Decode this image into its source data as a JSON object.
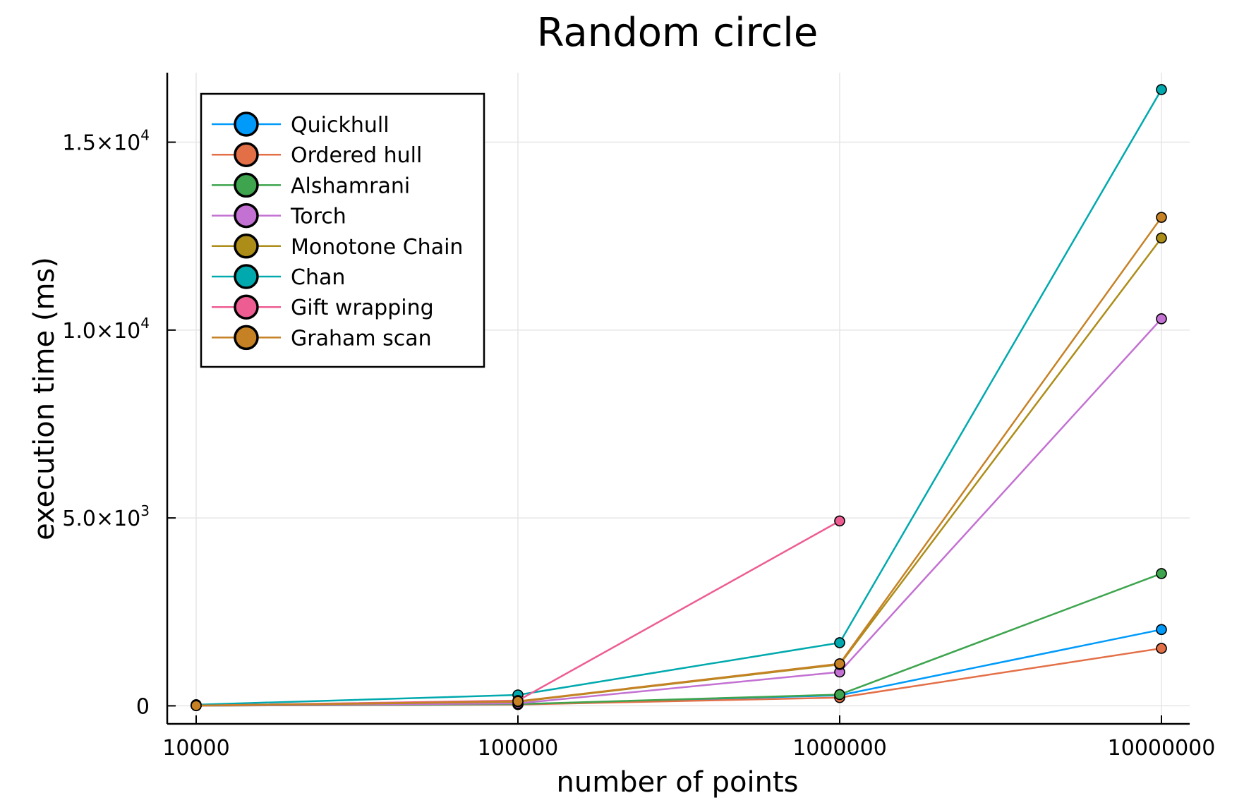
{
  "chart_data": {
    "type": "line",
    "title": "Random circle",
    "xlabel": "number of points",
    "ylabel": "execution time (ms)",
    "x": [
      10000,
      100000,
      1000000,
      10000000
    ],
    "x_scale": "log",
    "x_tick_labels": [
      "10000",
      "100000",
      "1000000",
      "10000000"
    ],
    "y_ticks": [
      {
        "value": 0,
        "mantissa": "0",
        "exponent": ""
      },
      {
        "value": 5000,
        "mantissa": "5.0×10",
        "exponent": "3"
      },
      {
        "value": 10000,
        "mantissa": "1.0×10",
        "exponent": "4"
      },
      {
        "value": 15000,
        "mantissa": "1.5×10",
        "exponent": "4"
      }
    ],
    "ylim": [
      -480,
      16850
    ],
    "grid": true,
    "legend_position": "top-left",
    "series": [
      {
        "name": "Quickhull",
        "color": "#009AFA",
        "values": [
          5,
          40,
          280,
          2030
        ]
      },
      {
        "name": "Ordered hull",
        "color": "#E36F47",
        "values": [
          5,
          35,
          220,
          1530
        ]
      },
      {
        "name": "Alshamrani",
        "color": "#3EA44E",
        "values": [
          5,
          45,
          300,
          3520
        ]
      },
      {
        "name": "Torch",
        "color": "#C371D2",
        "values": [
          5,
          65,
          900,
          10300
        ]
      },
      {
        "name": "Monotone Chain",
        "color": "#AC8D18",
        "values": [
          5,
          110,
          1100,
          12450
        ]
      },
      {
        "name": "Chan",
        "color": "#00A9AD",
        "values": [
          30,
          290,
          1680,
          16400
        ]
      },
      {
        "name": "Gift wrapping",
        "color": "#ED5D92",
        "values": [
          5,
          140,
          4920,
          null
        ]
      },
      {
        "name": "Graham scan",
        "color": "#C68125",
        "values": [
          5,
          120,
          1120,
          13000
        ]
      }
    ]
  }
}
